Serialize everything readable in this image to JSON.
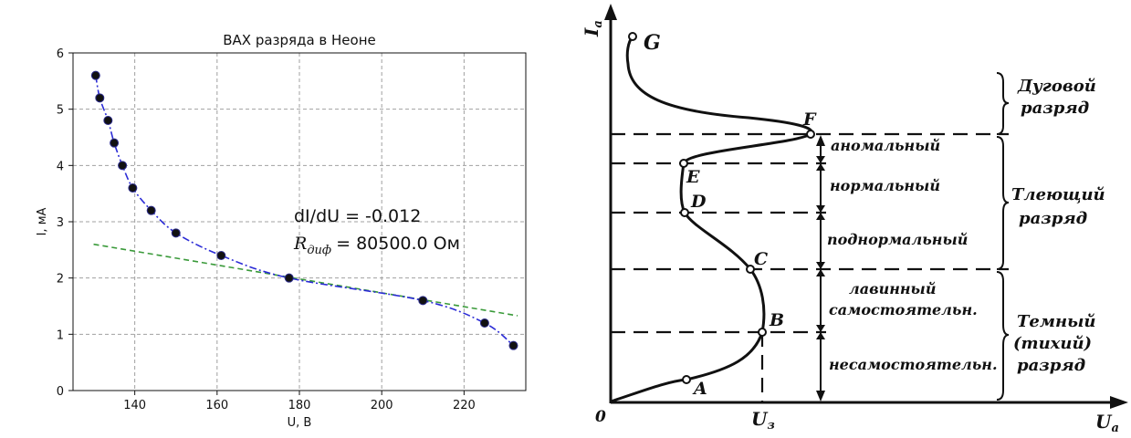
{
  "chart_data": [
    {
      "type": "line",
      "title": "ВАХ разряда в Неоне",
      "xlabel": "U, В",
      "ylabel": "I, мА",
      "xlim": [
        125,
        235
      ],
      "ylim": [
        0,
        6
      ],
      "xticks": [
        "140",
        "160",
        "180",
        "200",
        "220"
      ],
      "yticks": [
        "0",
        "1",
        "2",
        "3",
        "4",
        "5",
        "6"
      ],
      "grid": true,
      "series": [
        {
          "style": "markers",
          "color": "#000000",
          "x": [
            130.5,
            131.5,
            133.5,
            135,
            137,
            139.5,
            144,
            150,
            161,
            177.5,
            210,
            225,
            232
          ],
          "y": [
            5.6,
            5.2,
            4.8,
            4.4,
            4.0,
            3.6,
            3.2,
            2.8,
            2.4,
            2.0,
            1.6,
            1.2,
            0.8
          ]
        },
        {
          "style": "dash-dot fit",
          "color": "#2b2bd6",
          "x": [
            130.5,
            131.5,
            133.5,
            135,
            137,
            139.5,
            144,
            150,
            161,
            177.5,
            210,
            225,
            232
          ],
          "y": [
            5.6,
            5.2,
            4.8,
            4.4,
            4.0,
            3.6,
            3.2,
            2.8,
            2.4,
            2.0,
            1.6,
            1.2,
            0.8
          ]
        },
        {
          "style": "dashed tangent",
          "color": "#3a9a3a",
          "x": [
            130,
            233
          ],
          "y": [
            2.6,
            1.33
          ]
        }
      ],
      "annotations": {
        "line1": "dI/dU = -0.012",
        "line2_symbol": "R",
        "line2_subscript": "диф",
        "line2_rest": "= 80500.0 Ом"
      }
    },
    {
      "type": "diagram",
      "axis_y": "I",
      "axis_y_sub": "a",
      "axis_x": "U",
      "axis_x_sub": "a",
      "origin": "0",
      "x_marker": "U",
      "x_marker_sub": "з",
      "points": [
        "A",
        "B",
        "C",
        "D",
        "E",
        "F",
        "G"
      ],
      "regions_inner": [
        "аномальный",
        "нормальный",
        "поднормальный",
        "лавинный",
        "самостоятельн.",
        "несамостоятельн."
      ],
      "regions_outer": [
        {
          "lines": [
            "Дуговой",
            "разряд"
          ]
        },
        {
          "lines": [
            "Тлеющий",
            "разряд"
          ]
        },
        {
          "lines": [
            "Темный",
            "(тихий)",
            "разряд"
          ]
        }
      ]
    }
  ]
}
